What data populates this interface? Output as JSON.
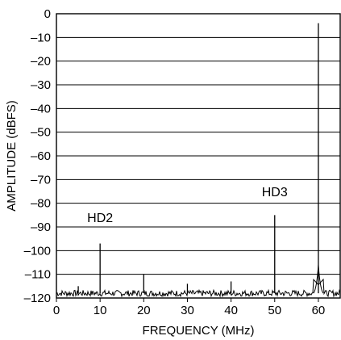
{
  "chart_data": {
    "type": "line",
    "xlabel": "FREQUENCY (MHz)",
    "ylabel": "AMPLITUDE (dBFS)",
    "xlim": [
      0,
      65
    ],
    "ylim": [
      -120,
      0
    ],
    "x_ticks": [
      0,
      10,
      20,
      30,
      40,
      50,
      60
    ],
    "x_tick_labels": [
      "0",
      "10",
      "20",
      "30",
      "40",
      "50",
      "60"
    ],
    "y_ticks": [
      0,
      -10,
      -20,
      -30,
      -40,
      -50,
      -60,
      -70,
      -80,
      -90,
      -100,
      -110,
      -120
    ],
    "y_tick_labels": [
      "0",
      "–10",
      "–20",
      "–30",
      "–40",
      "–50",
      "–60",
      "–70",
      "–80",
      "–90",
      "–100",
      "–110",
      "–120"
    ],
    "grid": "horizontal",
    "noise_floor_db": -118,
    "series": [
      {
        "points": [
          {
            "x": 5,
            "y": -115
          },
          {
            "x": 10,
            "y": -97
          },
          {
            "x": 20,
            "y": -110
          },
          {
            "x": 30,
            "y": -114
          },
          {
            "x": 40,
            "y": -113
          },
          {
            "x": 50,
            "y": -85
          },
          {
            "x": 60,
            "y": -4
          }
        ]
      }
    ],
    "annotations": [
      {
        "text": "HD2",
        "x": 10,
        "y": -88
      },
      {
        "text": "HD3",
        "x": 50,
        "y": -77
      }
    ]
  }
}
